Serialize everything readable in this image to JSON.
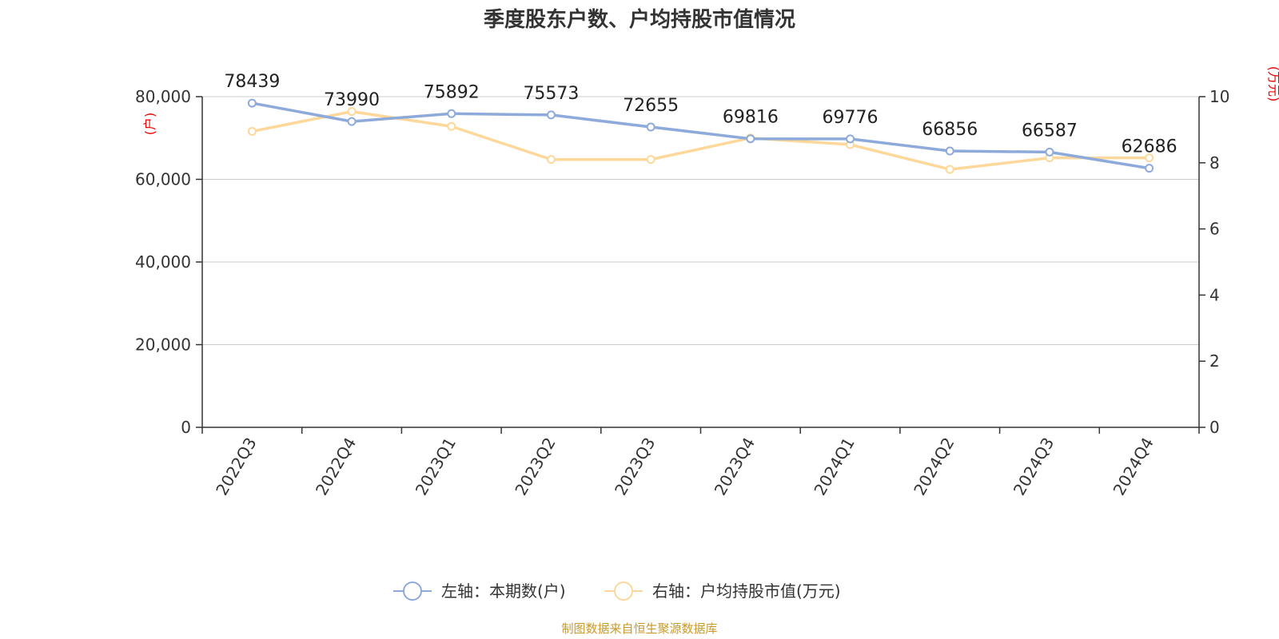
{
  "chart_data": {
    "type": "line",
    "title": "季度股东户数、户均持股市值情况",
    "categories": [
      "2022Q3",
      "2022Q4",
      "2023Q1",
      "2023Q2",
      "2023Q3",
      "2023Q4",
      "2024Q1",
      "2024Q2",
      "2024Q3",
      "2024Q4"
    ],
    "left_axis": {
      "unit": "(户)",
      "range": [
        0,
        80000
      ],
      "ticks": [
        "0",
        "20,000",
        "40,000",
        "60,000",
        "80,000"
      ],
      "tick_values": [
        0,
        20000,
        40000,
        60000,
        80000
      ]
    },
    "right_axis": {
      "unit": "(万元)",
      "range": [
        0,
        10
      ],
      "ticks": [
        "0",
        "2",
        "4",
        "6",
        "8",
        "10"
      ],
      "tick_values": [
        0,
        2,
        4,
        6,
        8,
        10
      ]
    },
    "series": [
      {
        "name": "左轴：本期数(户)",
        "axis": "left",
        "color": "#8eaadb",
        "values": [
          78439,
          73990,
          75892,
          75573,
          72655,
          69816,
          69776,
          66856,
          66587,
          62686
        ],
        "labels": [
          "78439",
          "73990",
          "75892",
          "75573",
          "72655",
          "69816",
          "69776",
          "66856",
          "66587",
          "62686"
        ]
      },
      {
        "name": "右轴：户均持股市值(万元)",
        "axis": "right",
        "color": "#fdd89a",
        "values": [
          8.95,
          9.55,
          9.1,
          8.1,
          8.1,
          8.75,
          8.55,
          7.8,
          8.15,
          8.15
        ]
      }
    ],
    "grid": true,
    "legend_position": "bottom-center"
  },
  "source_text": "制图数据来自恒生聚源数据库"
}
